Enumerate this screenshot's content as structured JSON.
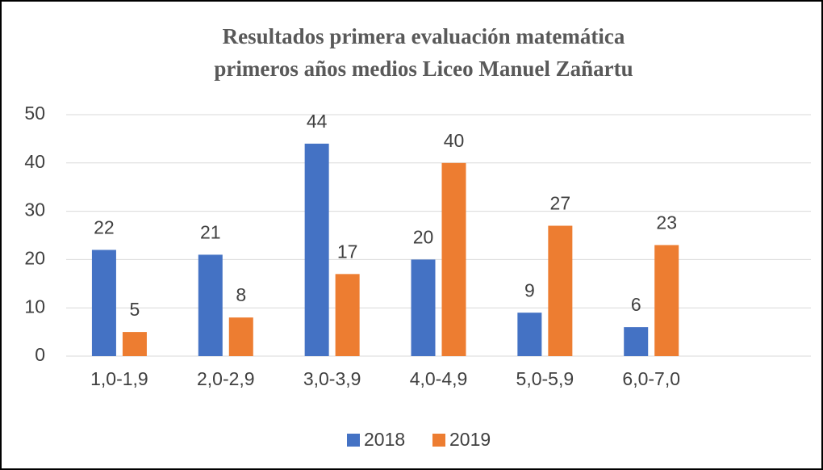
{
  "chart_data": {
    "type": "bar",
    "title": [
      "Resultados primera evaluación matemática",
      "primeros años medios Liceo Manuel Zañartu"
    ],
    "categories": [
      "1,0-1,9",
      "2,0-2,9",
      "3,0-3,9",
      "4,0-4,9",
      "5,0-5,9",
      "6,0-7,0",
      null
    ],
    "series": [
      {
        "name": "2018",
        "color": "#4472c4",
        "values": [
          22,
          21,
          44,
          20,
          9,
          6,
          null
        ]
      },
      {
        "name": "2019",
        "color": "#ed7d31",
        "values": [
          5,
          8,
          17,
          40,
          27,
          23,
          null
        ]
      }
    ],
    "ylim": [
      0,
      50
    ],
    "yticks": [
      0,
      10,
      20,
      30,
      40,
      50
    ],
    "grid": true,
    "legend": "bottom"
  }
}
